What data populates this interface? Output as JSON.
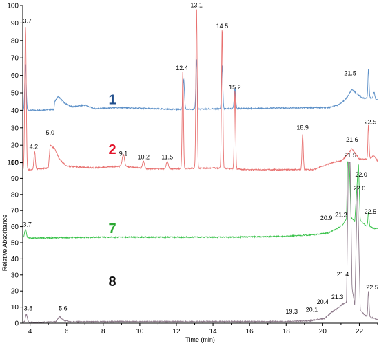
{
  "chart_data": [
    {
      "type": "line",
      "panel": "top",
      "ylabel": "",
      "xlim": [
        3.6,
        23
      ],
      "ylim": [
        0,
        100
      ],
      "yticks": [
        10,
        20,
        30,
        40,
        50,
        60,
        70,
        80,
        90,
        100
      ],
      "series": [
        {
          "name": "1",
          "color": "#5b8fc7",
          "baseline": 40,
          "base_points": [
            [
              3.6,
              40
            ],
            [
              4.3,
              40
            ],
            [
              5.3,
              40.5
            ],
            [
              5.35,
              45
            ],
            [
              5.55,
              48
            ],
            [
              5.9,
              44
            ],
            [
              6.3,
              42
            ],
            [
              7.0,
              43
            ],
            [
              7.5,
              41
            ],
            [
              9.0,
              41.5
            ],
            [
              12.0,
              40.5
            ],
            [
              15.5,
              41
            ],
            [
              19.0,
              41.5
            ],
            [
              20.3,
              41.5
            ],
            [
              20.8,
              43
            ],
            [
              21.0,
              44
            ],
            [
              21.3,
              47
            ],
            [
              21.6,
              52
            ],
            [
              21.9,
              49
            ],
            [
              22.2,
              47
            ],
            [
              22.6,
              47
            ],
            [
              23,
              46
            ]
          ],
          "peaks": [
            {
              "x": 3.75,
              "h": 26,
              "w": 0.04
            },
            {
              "x": 12.4,
              "h": 17,
              "w": 0.04
            },
            {
              "x": 13.1,
              "h": 29,
              "w": 0.035
            },
            {
              "x": 14.5,
              "h": 25,
              "w": 0.035
            },
            {
              "x": 15.2,
              "h": 12,
              "w": 0.04
            },
            {
              "x": 22.5,
              "h": 17,
              "w": 0.03
            },
            {
              "x": 22.8,
              "h": 4,
              "w": 0.04
            }
          ]
        },
        {
          "name": "2",
          "color": "#e8706f",
          "baseline": 6,
          "base_points": [
            [
              3.6,
              6
            ],
            [
              4.0,
              6
            ],
            [
              4.6,
              6.5
            ],
            [
              5.0,
              7
            ],
            [
              5.1,
              20
            ],
            [
              5.35,
              18
            ],
            [
              5.6,
              12
            ],
            [
              6.0,
              8
            ],
            [
              7.5,
              7
            ],
            [
              9.0,
              8
            ],
            [
              10.5,
              6.5
            ],
            [
              12.0,
              6.5
            ],
            [
              14.0,
              7
            ],
            [
              16.0,
              6
            ],
            [
              18.0,
              6
            ],
            [
              19.5,
              6
            ],
            [
              20.0,
              8
            ],
            [
              20.5,
              10
            ],
            [
              21.0,
              11
            ],
            [
              21.3,
              14
            ],
            [
              21.6,
              18
            ],
            [
              22.0,
              12
            ],
            [
              22.5,
              12
            ],
            [
              22.8,
              14
            ],
            [
              23,
              11
            ]
          ],
          "peaks": [
            {
              "x": 3.75,
              "h": 82,
              "w": 0.04
            },
            {
              "x": 4.25,
              "h": 10,
              "w": 0.04
            },
            {
              "x": 9.1,
              "h": 7,
              "w": 0.06
            },
            {
              "x": 10.2,
              "h": 4,
              "w": 0.05
            },
            {
              "x": 11.5,
              "h": 4,
              "w": 0.06
            },
            {
              "x": 12.35,
              "h": 56,
              "w": 0.035
            },
            {
              "x": 13.1,
              "h": 92,
              "w": 0.035
            },
            {
              "x": 14.5,
              "h": 80,
              "w": 0.035
            },
            {
              "x": 15.2,
              "h": 45,
              "w": 0.035
            },
            {
              "x": 18.9,
              "h": 20,
              "w": 0.035
            },
            {
              "x": 22.5,
              "h": 20,
              "w": 0.03
            }
          ]
        }
      ],
      "number_labels": [
        {
          "text": "1",
          "color": "#1f4e8c",
          "x": 8.5,
          "y": 43.5
        },
        {
          "text": "2",
          "color": "#e3142b",
          "x": 8.5,
          "y": 15
        }
      ],
      "annotations": [
        {
          "text": "3.7",
          "x": 3.85,
          "y": 90
        },
        {
          "text": "13.1",
          "x": 13.1,
          "y": 99
        },
        {
          "text": "14.5",
          "x": 14.5,
          "y": 87
        },
        {
          "text": "12.4",
          "x": 12.3,
          "y": 63
        },
        {
          "text": "21.5",
          "x": 21.5,
          "y": 60
        },
        {
          "text": "15.2",
          "x": 15.2,
          "y": 52
        },
        {
          "text": "22.5",
          "x": 22.6,
          "y": 32
        },
        {
          "text": "18.9",
          "x": 18.9,
          "y": 29
        },
        {
          "text": "5.0",
          "x": 5.1,
          "y": 26
        },
        {
          "text": "21.6",
          "x": 21.6,
          "y": 22
        },
        {
          "text": "4.2",
          "x": 4.2,
          "y": 18
        },
        {
          "text": "9.1",
          "x": 9.1,
          "y": 14
        },
        {
          "text": "10.2",
          "x": 10.2,
          "y": 12
        },
        {
          "text": "11.5",
          "x": 11.5,
          "y": 12
        }
      ]
    },
    {
      "type": "line",
      "panel": "bottom",
      "ylabel": "Relative Absorbance",
      "xlabel": "Time (min)",
      "xlim": [
        3.6,
        23
      ],
      "ylim": [
        0,
        100
      ],
      "xticks": [
        4,
        6,
        8,
        10,
        12,
        14,
        16,
        18,
        20,
        22
      ],
      "yticks": [
        0,
        10,
        20,
        30,
        40,
        50,
        60,
        70,
        80,
        90,
        100
      ],
      "series": [
        {
          "name": "7",
          "color": "#39c24a",
          "baseline": 53,
          "base_points": [
            [
              3.6,
              53
            ],
            [
              4.5,
              53
            ],
            [
              8.0,
              53.5
            ],
            [
              12.0,
              53.5
            ],
            [
              15.0,
              53.5
            ],
            [
              18.0,
              54
            ],
            [
              19.5,
              55
            ],
            [
              20.3,
              56
            ],
            [
              20.8,
              59
            ],
            [
              21.1,
              61
            ],
            [
              21.3,
              65
            ],
            [
              21.35,
              100
            ],
            [
              21.45,
              100
            ],
            [
              21.55,
              66
            ],
            [
              21.75,
              63
            ],
            [
              21.95,
              100
            ],
            [
              22.05,
              64
            ],
            [
              22.3,
              61
            ],
            [
              22.55,
              60
            ],
            [
              22.8,
              59
            ],
            [
              23,
              59
            ]
          ],
          "peaks": [
            {
              "x": 3.75,
              "h": 5,
              "w": 0.05
            },
            {
              "x": 22.5,
              "h": 9,
              "w": 0.03
            }
          ]
        },
        {
          "name": "8",
          "color": "#8e7a8b",
          "baseline": 0.5,
          "base_points": [
            [
              3.6,
              0.5
            ],
            [
              4.5,
              0.5
            ],
            [
              5.4,
              0.8
            ],
            [
              5.6,
              4
            ],
            [
              5.9,
              1.5
            ],
            [
              6.3,
              0.8
            ],
            [
              9.0,
              1
            ],
            [
              18.0,
              1
            ],
            [
              19.3,
              1.5
            ],
            [
              19.8,
              2.5
            ],
            [
              20.1,
              3
            ],
            [
              20.4,
              6
            ],
            [
              20.9,
              10
            ],
            [
              21.1,
              12
            ],
            [
              21.3,
              13
            ],
            [
              21.4,
              100
            ],
            [
              21.5,
              100
            ],
            [
              21.6,
              22
            ],
            [
              21.75,
              11
            ],
            [
              21.9,
              88
            ],
            [
              22.05,
              8
            ],
            [
              22.3,
              5
            ],
            [
              22.5,
              4
            ],
            [
              22.8,
              3
            ],
            [
              23,
              2
            ]
          ],
          "peaks": [
            {
              "x": 3.8,
              "h": 5,
              "w": 0.05
            },
            {
              "x": 22.5,
              "h": 16,
              "w": 0.03
            }
          ]
        }
      ],
      "number_labels": [
        {
          "text": "7",
          "color": "#2aa832",
          "x": 8.5,
          "y": 56
        },
        {
          "text": "8",
          "color": "#111111",
          "x": 8.5,
          "y": 23
        }
      ],
      "annotations": [
        {
          "text": "21.5",
          "x": 21.5,
          "y": 103
        },
        {
          "text": "22.0",
          "x": 22.1,
          "y": 91
        },
        {
          "text": "22.0",
          "x": 22.0,
          "y": 82.5
        },
        {
          "text": "22.5",
          "x": 22.6,
          "y": 68
        },
        {
          "text": "20.9",
          "x": 20.2,
          "y": 64
        },
        {
          "text": "21.2",
          "x": 21.0,
          "y": 66
        },
        {
          "text": "3.7",
          "x": 3.85,
          "y": 60
        },
        {
          "text": "21.4",
          "x": 21.1,
          "y": 29
        },
        {
          "text": "22.5",
          "x": 22.7,
          "y": 21
        },
        {
          "text": "21.3",
          "x": 20.8,
          "y": 15
        },
        {
          "text": "20.4",
          "x": 20.0,
          "y": 12
        },
        {
          "text": "20.1",
          "x": 19.4,
          "y": 7
        },
        {
          "text": "19.3",
          "x": 18.3,
          "y": 6
        },
        {
          "text": "3.8",
          "x": 3.9,
          "y": 8
        },
        {
          "text": "5.6",
          "x": 5.8,
          "y": 8
        }
      ]
    }
  ]
}
